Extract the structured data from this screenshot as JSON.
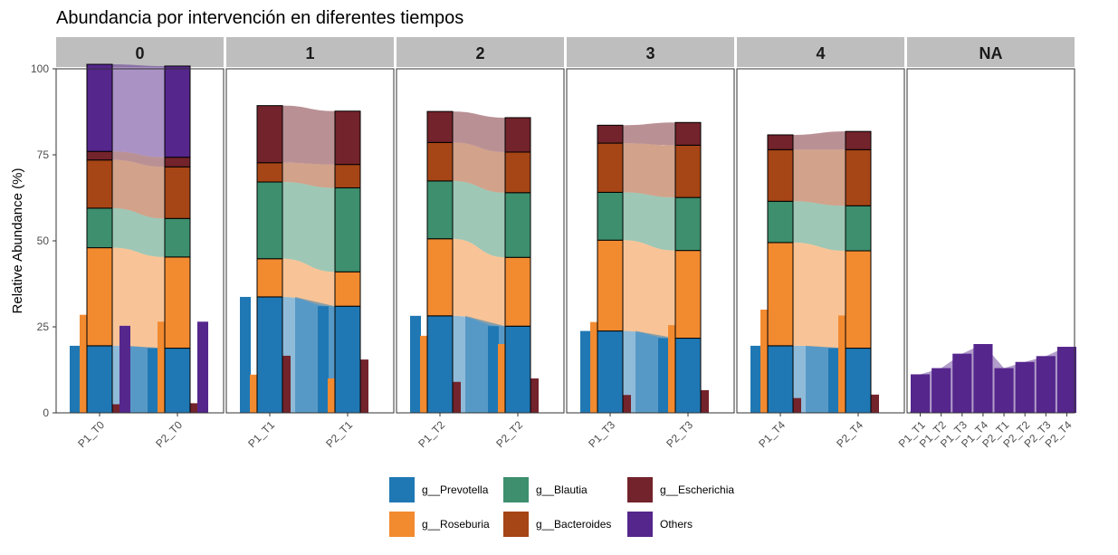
{
  "chart_data": {
    "type": "bar",
    "title": "Abundancia por intervención en diferentes tiempos",
    "ylabel": "Relative Abundance (%)",
    "xlabel": "",
    "ylim": [
      0,
      100
    ],
    "yticks": [
      0,
      25,
      50,
      75,
      100
    ],
    "genera": [
      "g__Prevotella",
      "g__Roseburia",
      "g__Blautia",
      "g__Bacteroides",
      "g__Escherichia",
      "Others"
    ],
    "colors": {
      "g__Prevotella": "#1f78b4",
      "g__Roseburia": "#f28a30",
      "g__Blautia": "#3d8f6e",
      "g__Bacteroides": "#a64516",
      "g__Escherichia": "#73232b",
      "Others": "#55268c"
    },
    "facets": [
      {
        "label": "0",
        "samples": [
          {
            "name": "P1_T0",
            "values": [
              19.5,
              28.5,
              11.5,
              14.0,
              2.5,
              25.3
            ]
          },
          {
            "name": "P2_T0",
            "values": [
              18.8,
              26.5,
              11.2,
              15.0,
              2.8,
              26.5
            ]
          }
        ]
      },
      {
        "label": "1",
        "samples": [
          {
            "name": "P1_T1",
            "values": [
              33.7,
              11.1,
              22.3,
              5.6,
              16.6,
              0
            ]
          },
          {
            "name": "P2_T1",
            "values": [
              31.0,
              10.0,
              24.4,
              6.8,
              15.5,
              0
            ]
          }
        ]
      },
      {
        "label": "2",
        "samples": [
          {
            "name": "P1_T2",
            "values": [
              28.2,
              22.4,
              16.8,
              11.2,
              9.0,
              0
            ]
          },
          {
            "name": "P2_T2",
            "values": [
              25.2,
              20.0,
              18.8,
              11.8,
              10.0,
              0
            ]
          }
        ]
      },
      {
        "label": "3",
        "samples": [
          {
            "name": "P1_T3",
            "values": [
              23.8,
              26.4,
              13.9,
              14.3,
              5.2,
              0
            ]
          },
          {
            "name": "P2_T3",
            "values": [
              21.7,
              25.5,
              15.4,
              15.2,
              6.6,
              0
            ]
          }
        ]
      },
      {
        "label": "4",
        "samples": [
          {
            "name": "P1_T4",
            "values": [
              19.5,
              30.0,
              12.0,
              15.0,
              4.3,
              0
            ]
          },
          {
            "name": "P2_T4",
            "values": [
              18.8,
              28.3,
              13.1,
              16.3,
              5.3,
              0
            ]
          }
        ]
      },
      {
        "label": "NA",
        "samples": [
          {
            "name": "P1_T1",
            "others": 11.2
          },
          {
            "name": "P1_T2",
            "others": 13.0
          },
          {
            "name": "P1_T3",
            "others": 17.2
          },
          {
            "name": "P1_T4",
            "others": 20.0
          },
          {
            "name": "P2_T1",
            "others": 13.0
          },
          {
            "name": "P2_T2",
            "others": 14.8
          },
          {
            "name": "P2_T3",
            "others": 16.5
          },
          {
            "name": "P2_T4",
            "others": 19.2
          }
        ]
      }
    ],
    "legend": {
      "position": "bottom",
      "ncol": 3
    },
    "grid": false
  }
}
